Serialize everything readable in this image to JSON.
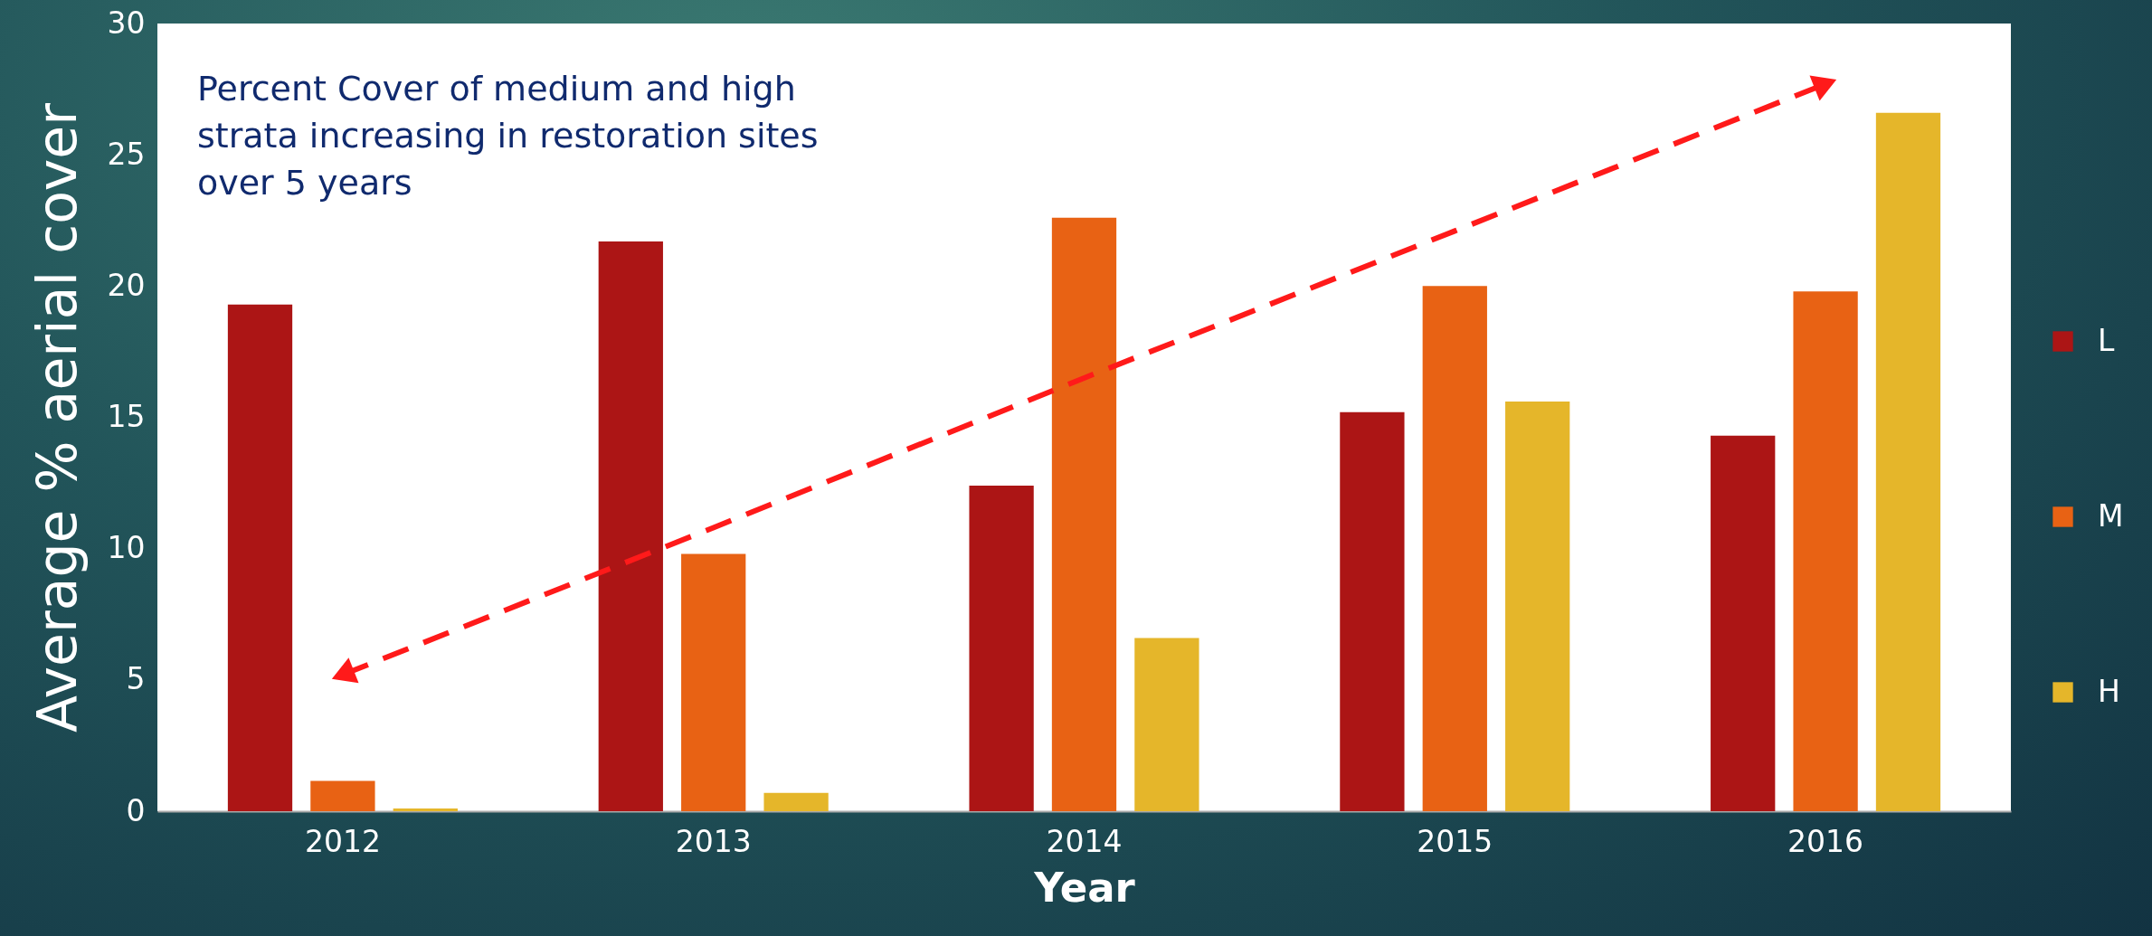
{
  "chart_data": {
    "type": "bar",
    "xlabel": "Year",
    "ylabel": "Average % aerial cover",
    "categories": [
      "2012",
      "2013",
      "2014",
      "2015",
      "2016"
    ],
    "series": [
      {
        "name": "L",
        "color": "#ac1515",
        "values": [
          19.3,
          21.7,
          12.4,
          15.2,
          14.3
        ]
      },
      {
        "name": "M",
        "color": "#e86214",
        "values": [
          1.15,
          9.8,
          22.6,
          20.0,
          19.8
        ]
      },
      {
        "name": "H",
        "color": "#e5b62a",
        "values": [
          0.1,
          0.7,
          6.6,
          15.6,
          26.6
        ]
      },
      {
        "type": "line",
        "values": [
          5.2,
          10.8,
          16.5,
          22.1,
          27.7
        ],
        "color": "#ff1a1a",
        "line_style": "dashed"
      }
    ],
    "ylim": [
      0,
      30
    ],
    "yticks": [
      0,
      5,
      10,
      15,
      20,
      25,
      30
    ],
    "grid": false,
    "legend": "right",
    "annotations": [
      "Percent Cover of medium and high strata increasing in restoration sites over 5 years"
    ]
  }
}
